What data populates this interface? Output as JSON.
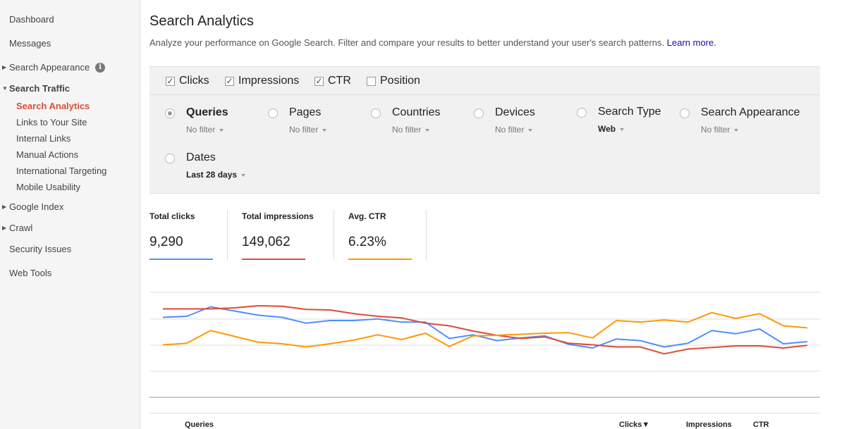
{
  "sidebar": {
    "dashboard": "Dashboard",
    "messages": "Messages",
    "search_appearance": "Search Appearance",
    "search_traffic": "Search Traffic",
    "search_traffic_items": [
      "Search Analytics",
      "Links to Your Site",
      "Internal Links",
      "Manual Actions",
      "International Targeting",
      "Mobile Usability"
    ],
    "google_index": "Google Index",
    "crawl": "Crawl",
    "security_issues": "Security Issues",
    "web_tools": "Web Tools"
  },
  "header": {
    "title": "Search Analytics",
    "description": "Analyze your performance on Google Search. Filter and compare your results to better understand your user's search patterns.",
    "learn_more": "Learn more."
  },
  "metrics": [
    {
      "label": "Clicks",
      "checked": true
    },
    {
      "label": "Impressions",
      "checked": true
    },
    {
      "label": "CTR",
      "checked": true
    },
    {
      "label": "Position",
      "checked": false
    }
  ],
  "group_by": [
    {
      "label": "Queries",
      "filter": "No filter",
      "selected": true
    },
    {
      "label": "Pages",
      "filter": "No filter",
      "selected": false
    },
    {
      "label": "Countries",
      "filter": "No filter",
      "selected": false
    },
    {
      "label": "Devices",
      "filter": "No filter",
      "selected": false
    },
    {
      "label": "Search Type",
      "filter": "Web",
      "selected": false
    },
    {
      "label": "Search Appearance",
      "filter": "No filter",
      "selected": false
    },
    {
      "label": "Dates",
      "filter": "Last 28 days",
      "selected": false
    }
  ],
  "totals": [
    {
      "label": "Total clicks",
      "value": "9,290",
      "color": "#4d90fe"
    },
    {
      "label": "Total impressions",
      "value": "149,062",
      "color": "#dd4b39"
    },
    {
      "label": "Avg. CTR",
      "value": "6.23%",
      "color": "#ff9900"
    }
  ],
  "chart_data": {
    "type": "line",
    "title": "",
    "xlabel": "",
    "ylabel": "",
    "grid": true,
    "series": [
      {
        "values": [
          0.66,
          0.68,
          0.86,
          0.78,
          0.7,
          0.66,
          0.55,
          0.6,
          0.6,
          0.63,
          0.57,
          0.57,
          0.26,
          0.33,
          0.22,
          0.27,
          0.31,
          0.15,
          0.08,
          0.25,
          0.22,
          0.1,
          0.17,
          0.41,
          0.35,
          0.44,
          0.16,
          0.2
        ],
        "color": "#4d90fe"
      },
      {
        "values": [
          0.82,
          0.82,
          0.82,
          0.84,
          0.88,
          0.87,
          0.81,
          0.8,
          0.73,
          0.68,
          0.65,
          0.55,
          0.5,
          0.4,
          0.32,
          0.26,
          0.29,
          0.17,
          0.14,
          0.1,
          0.1,
          -0.03,
          0.06,
          0.09,
          0.12,
          0.12,
          0.08,
          0.13
        ],
        "color": "#dd4b39"
      },
      {
        "values": [
          0.14,
          0.17,
          0.41,
          0.3,
          0.19,
          0.16,
          0.1,
          0.16,
          0.23,
          0.33,
          0.24,
          0.36,
          0.11,
          0.31,
          0.32,
          0.34,
          0.36,
          0.37,
          0.27,
          0.6,
          0.57,
          0.61,
          0.57,
          0.75,
          0.64,
          0.73,
          0.5,
          0.46
        ],
        "color": "#ff9900"
      }
    ]
  },
  "table": {
    "headers": [
      "Queries",
      "Clicks▼",
      "Impressions",
      "CTR"
    ]
  }
}
